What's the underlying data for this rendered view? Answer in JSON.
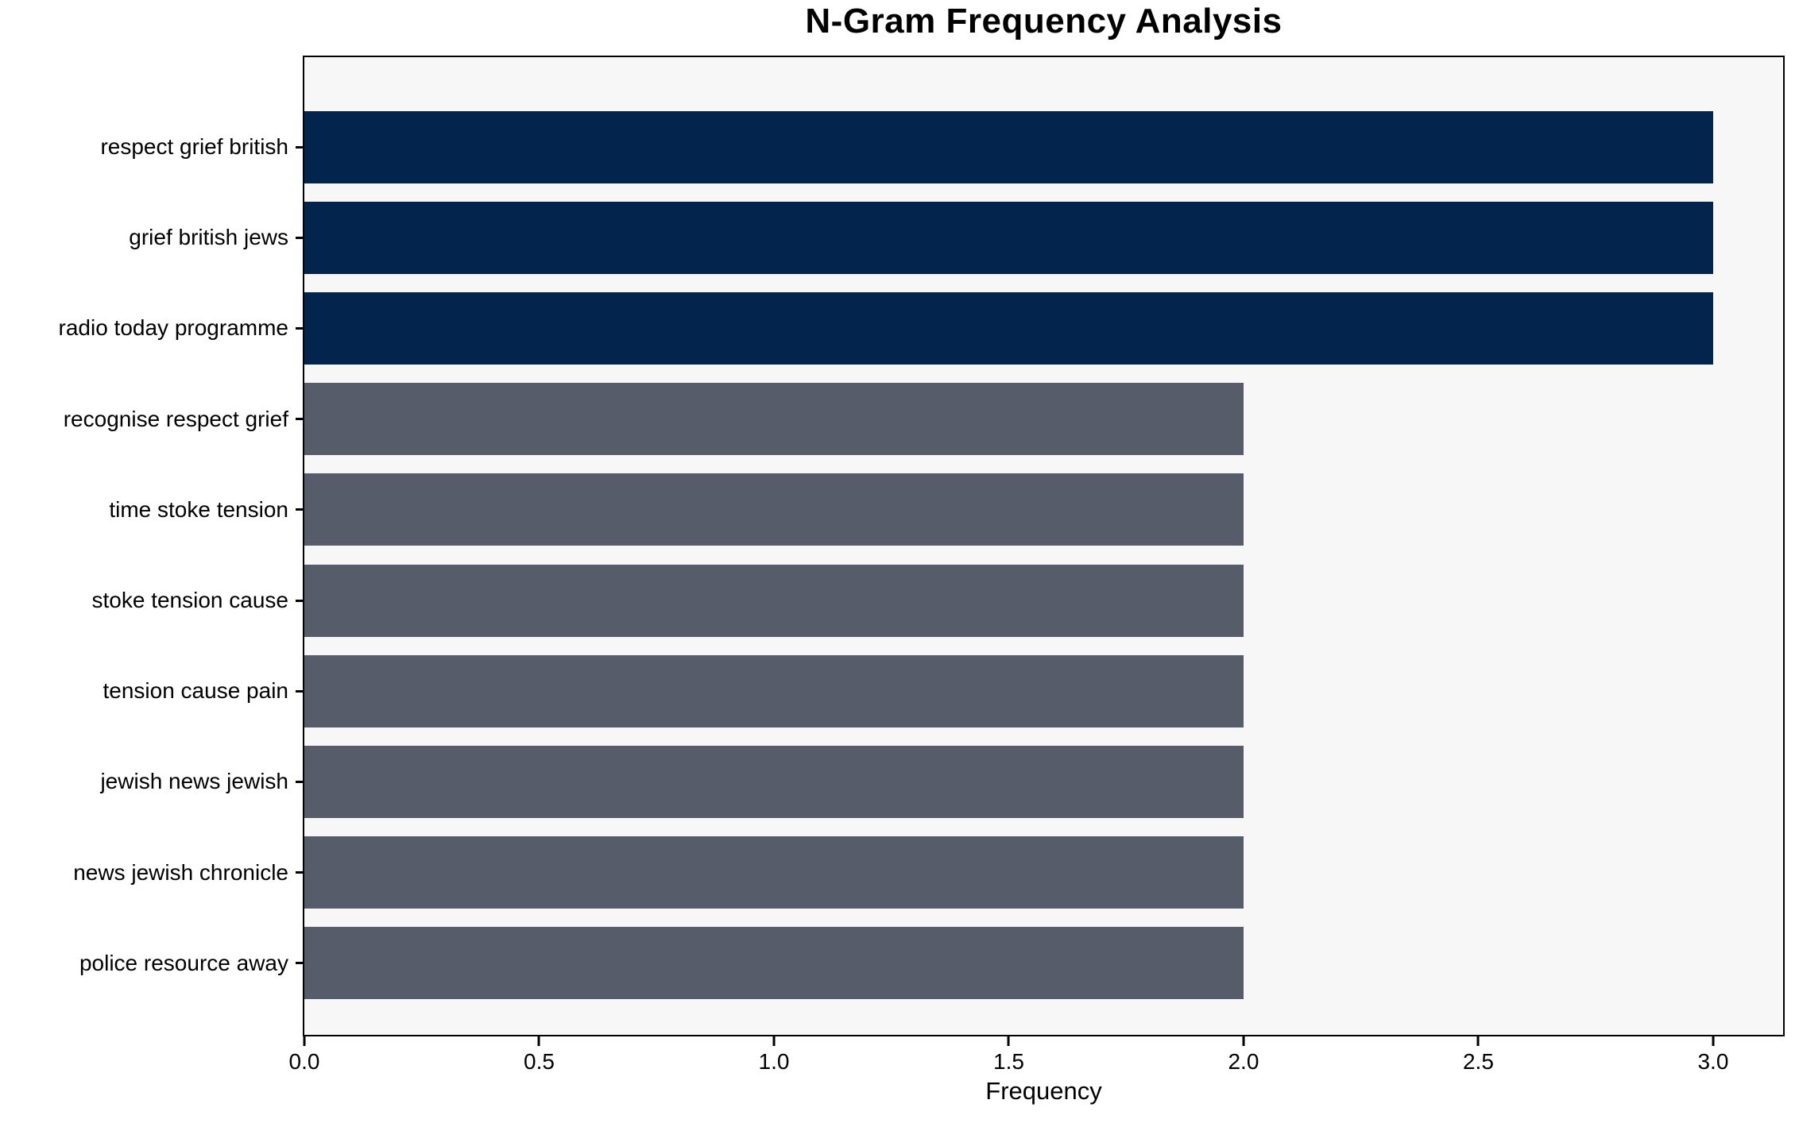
{
  "chart_data": {
    "type": "bar",
    "orientation": "horizontal",
    "title": "N-Gram Frequency Analysis",
    "xlabel": "Frequency",
    "ylabel": "",
    "categories": [
      "respect grief british",
      "grief british jews",
      "radio today programme",
      "recognise respect grief",
      "time stoke tension",
      "stoke tension cause",
      "tension cause pain",
      "jewish news jewish",
      "news jewish chronicle",
      "police resource away"
    ],
    "values": [
      3,
      3,
      3,
      2,
      2,
      2,
      2,
      2,
      2,
      2
    ],
    "bar_colors": [
      "#03244d",
      "#03244d",
      "#03244d",
      "#575c6b",
      "#575c6b",
      "#575c6b",
      "#575c6b",
      "#575c6b",
      "#575c6b",
      "#575c6b"
    ],
    "xlim": [
      0,
      3.149
    ],
    "xticks": [
      {
        "value": 0.0,
        "label": "0.0"
      },
      {
        "value": 0.5,
        "label": "0.5"
      },
      {
        "value": 1.0,
        "label": "1.0"
      },
      {
        "value": 1.5,
        "label": "1.5"
      },
      {
        "value": 2.0,
        "label": "2.0"
      },
      {
        "value": 2.5,
        "label": "2.5"
      },
      {
        "value": 3.0,
        "label": "3.0"
      }
    ],
    "grid": false,
    "legend": null,
    "colors": {
      "highlight_bar": "#03244d",
      "normal_bar": "#575c6b",
      "plot_background": "#f7f7f7",
      "figure_background": "#ffffff",
      "spine": "#000000",
      "text": "#000000"
    }
  }
}
